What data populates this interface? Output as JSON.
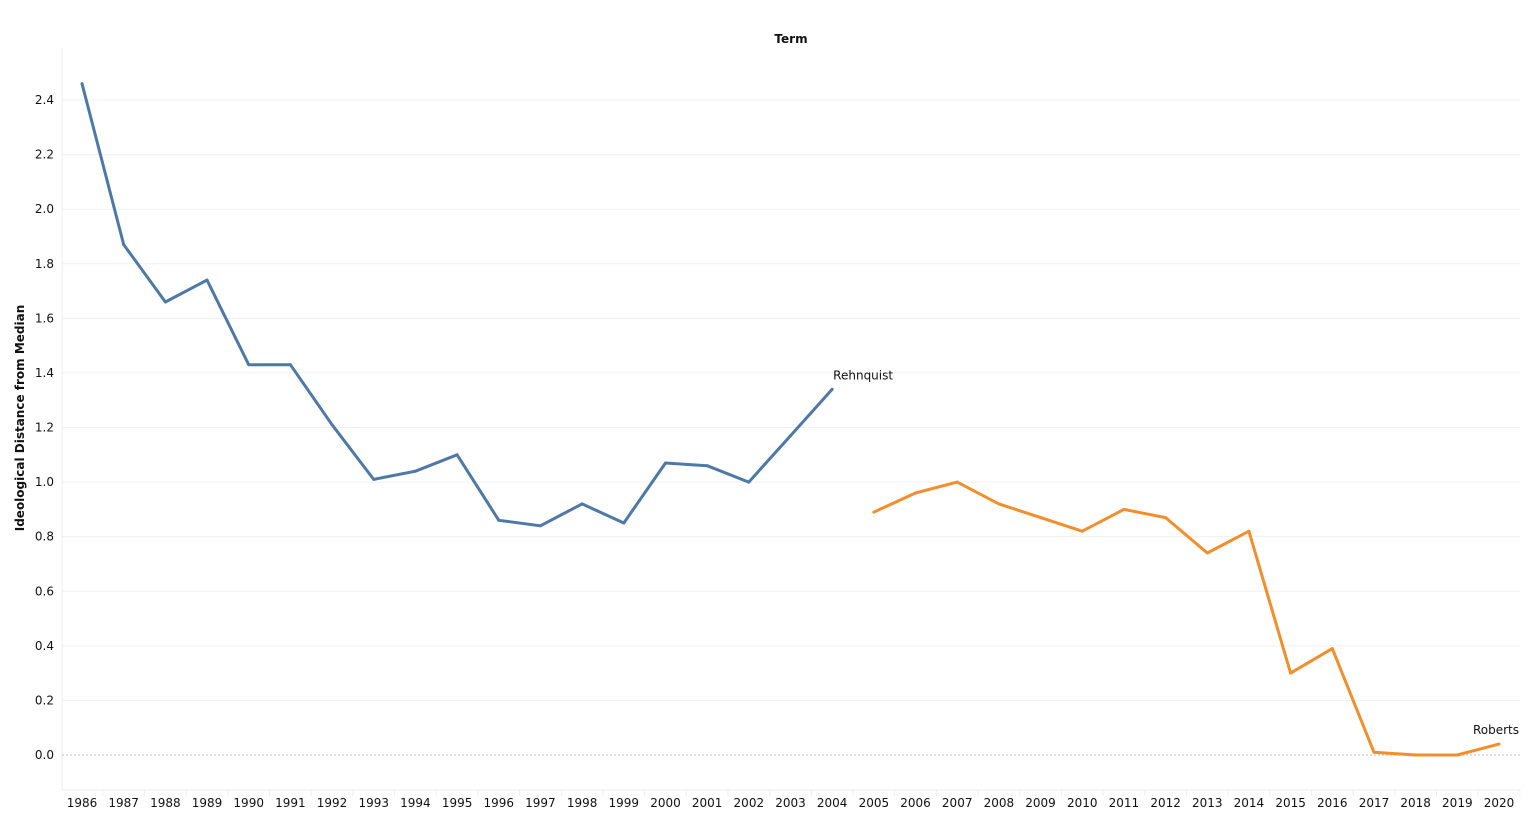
{
  "chart_data": {
    "type": "line",
    "title": "Term",
    "xlabel": "",
    "ylabel": "Ideological Distance from Median",
    "ylim": [
      -0.13,
      2.63
    ],
    "yticks": [
      0.0,
      0.2,
      0.4,
      0.6,
      0.8,
      1.0,
      1.2,
      1.4,
      1.6,
      1.8,
      2.0,
      2.2,
      2.4
    ],
    "grid": true,
    "x": [
      1986,
      1987,
      1988,
      1989,
      1990,
      1991,
      1992,
      1993,
      1994,
      1995,
      1996,
      1997,
      1998,
      1999,
      2000,
      2001,
      2002,
      2003,
      2004,
      2005,
      2006,
      2007,
      2008,
      2009,
      2010,
      2011,
      2012,
      2013,
      2014,
      2015,
      2016,
      2017,
      2018,
      2019,
      2020
    ],
    "series": [
      {
        "name": "Rehnquist",
        "color": "#4e79a7",
        "x": [
          1986,
          1987,
          1988,
          1989,
          1990,
          1991,
          1992,
          1993,
          1994,
          1995,
          1996,
          1997,
          1998,
          1999,
          2000,
          2001,
          2002,
          2003,
          2004
        ],
        "values": [
          2.46,
          1.87,
          1.66,
          1.74,
          1.43,
          1.43,
          1.21,
          1.01,
          1.04,
          1.1,
          0.86,
          0.84,
          0.92,
          0.85,
          1.07,
          1.06,
          1.0,
          1.17,
          1.34
        ]
      },
      {
        "name": "Roberts",
        "color": "#f28e2b",
        "x": [
          2005,
          2006,
          2007,
          2008,
          2009,
          2010,
          2011,
          2012,
          2013,
          2014,
          2015,
          2016,
          2017,
          2018,
          2019,
          2020
        ],
        "values": [
          0.89,
          0.96,
          1.0,
          0.92,
          0.87,
          0.82,
          0.9,
          0.87,
          0.74,
          0.82,
          0.3,
          0.39,
          0.01,
          0.0,
          0.0,
          0.04
        ]
      }
    ]
  }
}
